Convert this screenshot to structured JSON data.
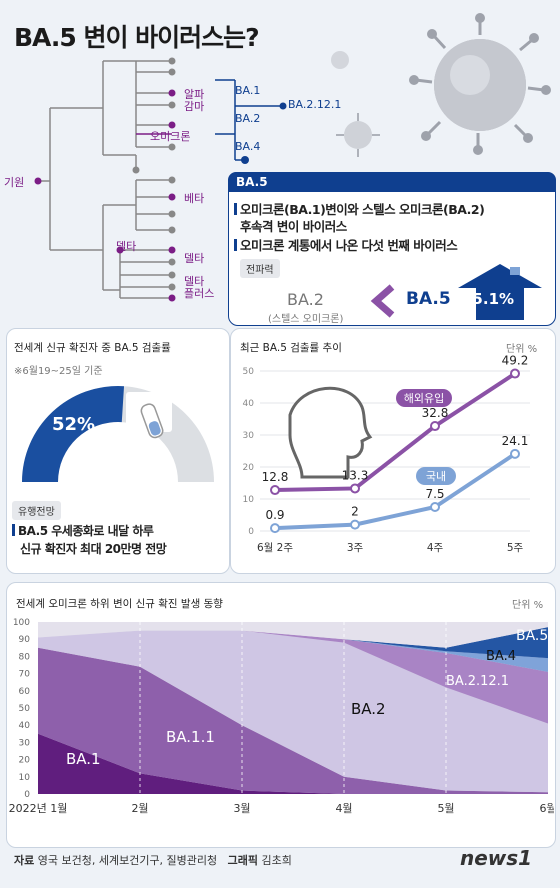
{
  "title": "BA.5 변이 바이러스는?",
  "tree": {
    "root": "기원",
    "variants": [
      "알파",
      "감마",
      "오미크론",
      "베타",
      "델타",
      "델타",
      "델타 플러스"
    ],
    "delta_plus": [
      "델타",
      "플러스"
    ],
    "sub_lineages": [
      "BA.1",
      "BA.2",
      "BA.4",
      "BA.2.12.1"
    ]
  },
  "ba5_panel": {
    "header": "BA.5",
    "bullet1_line1": "오미크론(BA.1)변이와 스텔스 오미크론(BA.2)",
    "bullet1_line2": "후속격 변이 바이러스",
    "bullet2": "오미크론 계통에서 나온 다섯 번째 바이러스",
    "transmissibility_tag": "전파력",
    "ba2_label": "BA.2",
    "ba2_sub": "(스텔스 오미크론)",
    "ba5_label": "BA.5",
    "increase": "35.1%",
    "accent": "#0f3f8f"
  },
  "detection_panel": {
    "title": "전세계 신규 확진자 중 BA.5 검출률",
    "period": "※6월19~25일 기준",
    "percent_label": "52%",
    "percent_value": 52,
    "forecast_tag": "유행전망",
    "forecast_line1": "BA.5 우세종화로 내달 하루",
    "forecast_line2": "신규 확진자 최대 20만명 전망"
  },
  "trend_chart": {
    "title": "최근 BA.5 검출률 추이",
    "unit": "단위  %"
  },
  "area_chart_header": {
    "title": "전세계 오미크론 하위 변이 신규 확진 발생 동향",
    "unit": "단위  %"
  },
  "chart_data": [
    {
      "type": "line",
      "title": "최근 BA.5 검출률 추이",
      "categories": [
        "6월 2주",
        "3주",
        "4주",
        "5주"
      ],
      "ylim": [
        0,
        50
      ],
      "yticks": [
        0,
        10,
        20,
        30,
        40,
        50
      ],
      "series": [
        {
          "name": "해외유입",
          "values": [
            12.8,
            13.3,
            32.8,
            49.2
          ],
          "color": "#8b52a6"
        },
        {
          "name": "국내",
          "values": [
            0.9,
            2.0,
            7.5,
            24.1
          ],
          "color": "#7ea3d6"
        }
      ],
      "grid": true
    },
    {
      "type": "area",
      "title": "전세계 오미크론 하위 변이 신규 확진 발생 동향",
      "x": [
        "2022년 1월",
        "2월",
        "3월",
        "4월",
        "5월",
        "6월"
      ],
      "ylim": [
        0,
        100
      ],
      "yticks": [
        0,
        10,
        20,
        30,
        40,
        50,
        60,
        70,
        80,
        90,
        100
      ],
      "series": [
        {
          "name": "BA.1",
          "values": [
            35,
            12,
            2,
            0,
            0,
            0
          ],
          "color": "#5a1478"
        },
        {
          "name": "BA.1.1",
          "values": [
            50,
            62,
            38,
            10,
            2,
            1
          ],
          "color": "#8a5aa8"
        },
        {
          "name": "BA.2",
          "values": [
            6,
            21,
            55,
            78,
            60,
            40
          ],
          "color": "#cfc5e4"
        },
        {
          "name": "BA.2.12.1",
          "values": [
            0,
            0,
            0,
            2,
            20,
            30
          ],
          "color": "#a67fc3"
        },
        {
          "name": "BA.4",
          "values": [
            0,
            0,
            0,
            0,
            1,
            8
          ],
          "color": "#7aa0d8"
        },
        {
          "name": "BA.5",
          "values": [
            0,
            0,
            0,
            0,
            2,
            18
          ],
          "color": "#1a4fa0"
        }
      ],
      "grid": true
    }
  ],
  "footer": {
    "source_label": "자료",
    "source_text": "영국 보건청, 세계보건기구, 질병관리청",
    "graphic_label": "그래픽",
    "graphic_author": "김초희",
    "logo": "news1"
  }
}
